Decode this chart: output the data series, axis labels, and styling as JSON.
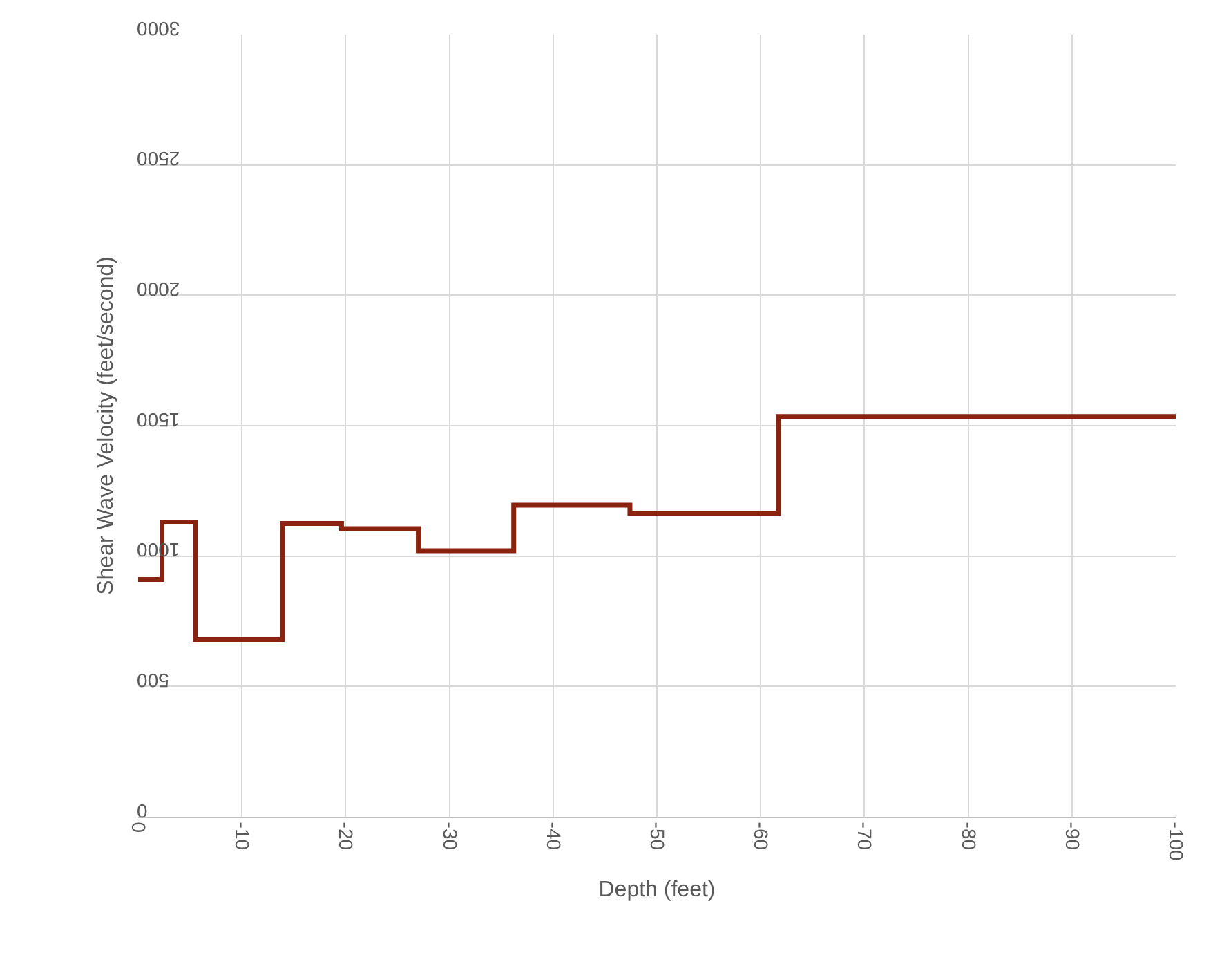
{
  "chart_data": {
    "type": "step",
    "xlabel": "Depth (feet)",
    "ylabel": "Shear Wave Velocity (feet/second)",
    "x": [
      0,
      -2.3,
      -5.5,
      -13.9,
      -19.6,
      -27,
      -36.2,
      -47.4,
      -61.7,
      -100
    ],
    "series": [
      {
        "color": "#8b2210",
        "values": [
          910,
          1130,
          680,
          1125,
          1105,
          1020,
          1195,
          1165,
          1535,
          1535
        ]
      }
    ],
    "xlim": [
      0,
      -100
    ],
    "xticks": [
      0,
      -10,
      -20,
      -30,
      -40,
      -50,
      -60,
      -70,
      -80,
      -90,
      -100
    ],
    "ylim": [
      0,
      3000
    ],
    "yticks": [
      0,
      500,
      1000,
      1500,
      2000,
      2500,
      3000
    ],
    "grid": true,
    "marker": "none",
    "line_style": "solid"
  }
}
